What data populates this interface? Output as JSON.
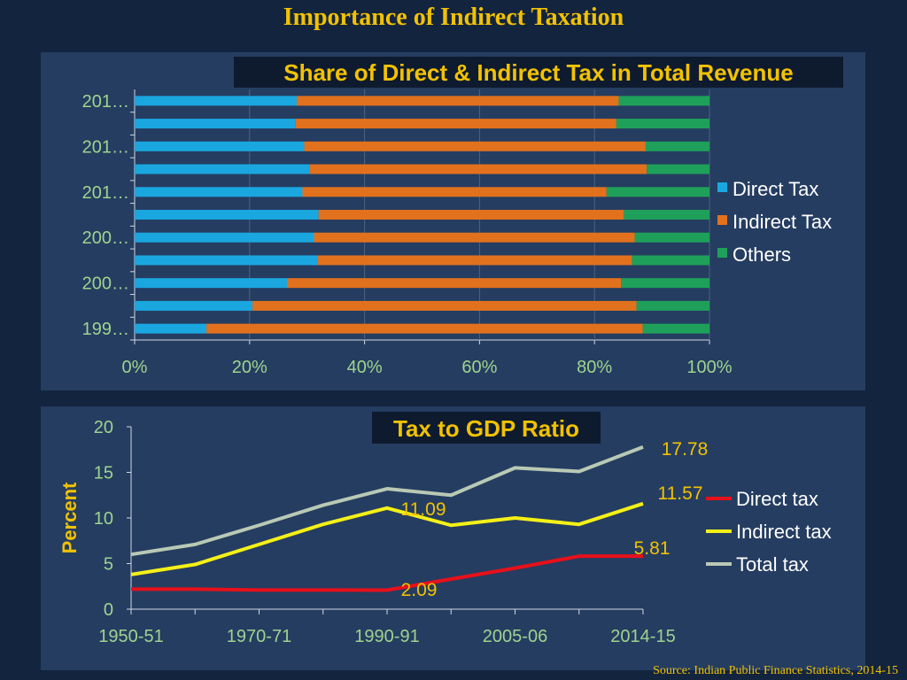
{
  "slide": {
    "title": "Importance of Indirect Taxation",
    "source": "Source: Indian Public Finance Statistics, 2014-15"
  },
  "colors": {
    "background": "#13243f",
    "panel": "#253d61",
    "title": "#f2c200",
    "label_text": "#9fd38f",
    "direct": "#1aa7e0",
    "indirect": "#e2711d",
    "others": "#1fa05a",
    "direct_line": "#e8101a",
    "indirect_line": "#f5f017",
    "total_line": "#b9c9b4",
    "value_label": "#f2c200"
  },
  "chart_data": [
    {
      "type": "bar",
      "orientation": "horizontal",
      "stacked": "percent",
      "title": "Share of Direct & Indirect Tax in Total Revenue",
      "xlim": [
        0,
        100
      ],
      "x_ticks": [
        "0%",
        "20%",
        "40%",
        "60%",
        "80%",
        "100%"
      ],
      "category_tick_labels": [
        "199…",
        "200…",
        "200…",
        "201…",
        "201…",
        "201…"
      ],
      "legend_position": "right",
      "series": [
        {
          "name": "Direct Tax",
          "values": [
            12.5,
            20.5,
            26.5,
            31.8,
            31.2,
            32.0,
            29.2,
            30.5,
            29.5,
            28.0,
            28.2
          ]
        },
        {
          "name": "Indirect Tax",
          "values": [
            75.9,
            66.8,
            58.1,
            54.7,
            55.8,
            53.1,
            52.9,
            58.6,
            59.4,
            55.8,
            56.0
          ]
        },
        {
          "name": "Others",
          "values": [
            11.6,
            12.7,
            15.4,
            13.5,
            13.0,
            14.9,
            17.9,
            10.9,
            11.1,
            16.2,
            15.8
          ]
        }
      ]
    },
    {
      "type": "line",
      "title": "Tax to GDP Ratio",
      "ylabel": "Percent",
      "ylim": [
        0,
        20
      ],
      "y_ticks": [
        0,
        5,
        10,
        15,
        20
      ],
      "x_tick_labels": [
        "1950-51",
        "1970-71",
        "1990-91",
        "2005-06",
        "2014-15"
      ],
      "legend_position": "right",
      "series": [
        {
          "name": "Direct tax",
          "values": [
            2.2,
            2.2,
            2.1,
            2.1,
            2.09,
            3.3,
            4.5,
            5.81,
            5.81
          ]
        },
        {
          "name": "Indirect tax",
          "values": [
            3.8,
            4.9,
            7.1,
            9.3,
            11.09,
            9.2,
            10.0,
            9.3,
            11.57
          ]
        },
        {
          "name": "Total tax",
          "values": [
            6.0,
            7.1,
            9.2,
            11.4,
            13.2,
            12.5,
            15.5,
            15.1,
            17.78
          ]
        }
      ],
      "data_labels": [
        "2.09",
        "11.09",
        "5.81",
        "11.57",
        "17.78"
      ]
    }
  ]
}
